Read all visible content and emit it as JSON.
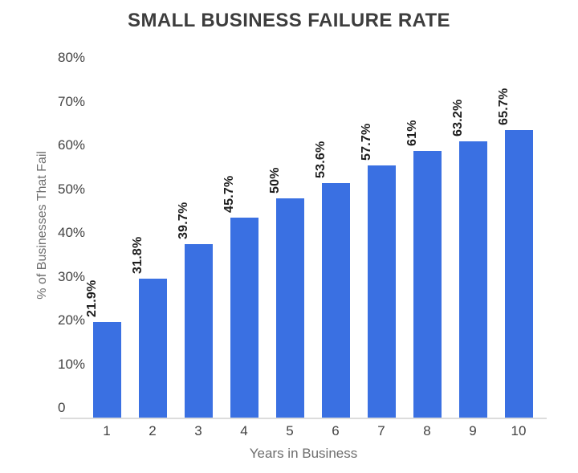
{
  "title": "SMALL BUSINESS FAILURE RATE",
  "colors": {
    "bar": "#3a70e2",
    "title_text": "#3d3d3d",
    "tick_text": "#424242",
    "axis_title_text": "#6e6e6e",
    "value_label_text": "#1c1c1c",
    "axis_line": "#dcdcdc",
    "background": "#ffffff"
  },
  "chart_data": {
    "type": "bar",
    "title": "SMALL BUSINESS FAILURE RATE",
    "xlabel": "Years in Business",
    "ylabel": "% of Businesses That Fail",
    "categories": [
      "1",
      "2",
      "3",
      "4",
      "5",
      "6",
      "7",
      "8",
      "9",
      "10"
    ],
    "values": [
      21.9,
      31.8,
      39.7,
      45.7,
      50,
      53.6,
      57.7,
      61,
      63.2,
      65.7
    ],
    "value_labels": [
      "21.9%",
      "31.8%",
      "39.7%",
      "45.7%",
      "50%",
      "53.6%",
      "57.7%",
      "61%",
      "63.2%",
      "65.7%"
    ],
    "ylim": [
      0,
      80
    ],
    "yticks": [
      0,
      10,
      20,
      30,
      40,
      50,
      60,
      70,
      80
    ],
    "ytick_labels": [
      "0",
      "10%",
      "20%",
      "30%",
      "40%",
      "50%",
      "60%",
      "70%",
      "80%"
    ],
    "grid": false,
    "legend": "none",
    "bar_color": "#3a70e2"
  }
}
